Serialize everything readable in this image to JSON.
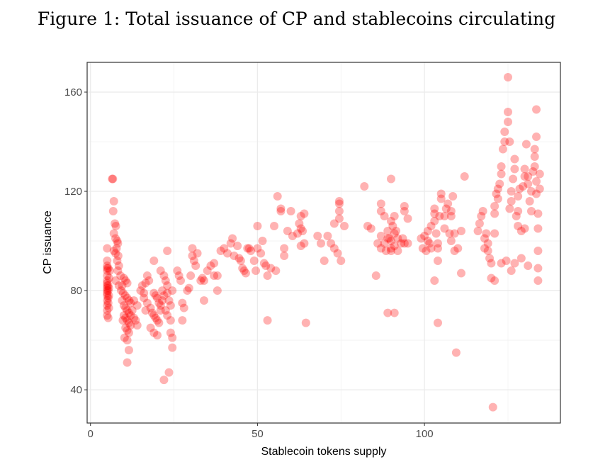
{
  "chart_data": {
    "type": "scatter",
    "title": "Figure 1: Total issuance of CP and stablecoins circulating",
    "xlabel": "Stablecoin tokens supply",
    "ylabel": "CP issuance",
    "xlim": [
      -1,
      140.7
    ],
    "ylim": [
      26.6,
      172
    ],
    "xticks": [
      0,
      50,
      100
    ],
    "yticks": [
      40,
      80,
      120,
      160
    ],
    "grid": true,
    "legend": "none",
    "point_color": "#ff0000",
    "point_alpha": 0.3,
    "points": [
      [
        5,
        70
      ],
      [
        5,
        72
      ],
      [
        5,
        74
      ],
      [
        5,
        76
      ],
      [
        5,
        78
      ],
      [
        5,
        79
      ],
      [
        5,
        80
      ],
      [
        5,
        81
      ],
      [
        5,
        82
      ],
      [
        5,
        83
      ],
      [
        5,
        84
      ],
      [
        5,
        86
      ],
      [
        5,
        88
      ],
      [
        5,
        89
      ],
      [
        5,
        90
      ],
      [
        5,
        92
      ],
      [
        5,
        97
      ],
      [
        5.3,
        69
      ],
      [
        5.3,
        75
      ],
      [
        5.3,
        77
      ],
      [
        5.3,
        80
      ],
      [
        5.3,
        82
      ],
      [
        5.3,
        89
      ],
      [
        5.5,
        73
      ],
      [
        5.5,
        78
      ],
      [
        5.5,
        81
      ],
      [
        5.6,
        85
      ],
      [
        5.8,
        88
      ],
      [
        6.5,
        125
      ],
      [
        6.7,
        125
      ],
      [
        7,
        116
      ],
      [
        6.8,
        112
      ],
      [
        7.3,
        107
      ],
      [
        7.6,
        106
      ],
      [
        7,
        103
      ],
      [
        7.5,
        101
      ],
      [
        8,
        100
      ],
      [
        8.2,
        99
      ],
      [
        7.8,
        97
      ],
      [
        7,
        96
      ],
      [
        7.5,
        95
      ],
      [
        8.3,
        94
      ],
      [
        8,
        92
      ],
      [
        8.5,
        90
      ],
      [
        8.2,
        88
      ],
      [
        9,
        86
      ],
      [
        7.5,
        84
      ],
      [
        8.5,
        82
      ],
      [
        9.5,
        82
      ],
      [
        10,
        85
      ],
      [
        10.5,
        84
      ],
      [
        11,
        83
      ],
      [
        9.2,
        80
      ],
      [
        9.8,
        79
      ],
      [
        10.4,
        78
      ],
      [
        11,
        77
      ],
      [
        11.6,
        76
      ],
      [
        12,
        75
      ],
      [
        9.5,
        76
      ],
      [
        10,
        74
      ],
      [
        10.5,
        73
      ],
      [
        11,
        72
      ],
      [
        11.5,
        71
      ],
      [
        12,
        70
      ],
      [
        10,
        70
      ],
      [
        10.5,
        69
      ],
      [
        11,
        68
      ],
      [
        11.5,
        67
      ],
      [
        12,
        66
      ],
      [
        10.5,
        65
      ],
      [
        11,
        64
      ],
      [
        11.5,
        63
      ],
      [
        9.7,
        68
      ],
      [
        10.2,
        61
      ],
      [
        11,
        60
      ],
      [
        11.5,
        56
      ],
      [
        11,
        51
      ],
      [
        12.5,
        72
      ],
      [
        13,
        69
      ],
      [
        13.5,
        68
      ],
      [
        14,
        66
      ],
      [
        13,
        76
      ],
      [
        14,
        74
      ],
      [
        15,
        80
      ],
      [
        15.5,
        82
      ],
      [
        16,
        79
      ],
      [
        16.5,
        83
      ],
      [
        17,
        86
      ],
      [
        17.5,
        84
      ],
      [
        16,
        77
      ],
      [
        16.5,
        72
      ],
      [
        17,
        75
      ],
      [
        18,
        73
      ],
      [
        18.5,
        71
      ],
      [
        19,
        79
      ],
      [
        19.5,
        78
      ],
      [
        20,
        77
      ],
      [
        20.5,
        75
      ],
      [
        21,
        74
      ],
      [
        19,
        70
      ],
      [
        19.5,
        69
      ],
      [
        20,
        68
      ],
      [
        20.5,
        67
      ],
      [
        21,
        72
      ],
      [
        18,
        65
      ],
      [
        19,
        63
      ],
      [
        20,
        62
      ],
      [
        19,
        92
      ],
      [
        21,
        88
      ],
      [
        22,
        86
      ],
      [
        22.5,
        84
      ],
      [
        23,
        82
      ],
      [
        21.5,
        80
      ],
      [
        22,
        78
      ],
      [
        23,
        79
      ],
      [
        23.5,
        76
      ],
      [
        24,
        74
      ],
      [
        22.5,
        72
      ],
      [
        23,
        70
      ],
      [
        24,
        68
      ],
      [
        24.5,
        80
      ],
      [
        23,
        96
      ],
      [
        24,
        63
      ],
      [
        24.5,
        61
      ],
      [
        24.5,
        57
      ],
      [
        23.5,
        47
      ],
      [
        22,
        44
      ],
      [
        21.5,
        76
      ],
      [
        26,
        88
      ],
      [
        26.5,
        86
      ],
      [
        27,
        84
      ],
      [
        27.5,
        75
      ],
      [
        28,
        73
      ],
      [
        27.5,
        68
      ],
      [
        29,
        80
      ],
      [
        29.5,
        81
      ],
      [
        30,
        86
      ],
      [
        30.5,
        94
      ],
      [
        31,
        92
      ],
      [
        30.5,
        97
      ],
      [
        31.5,
        90
      ],
      [
        32,
        95
      ],
      [
        33,
        84
      ],
      [
        33.5,
        85
      ],
      [
        34,
        84
      ],
      [
        35,
        88
      ],
      [
        36,
        90
      ],
      [
        37,
        91
      ],
      [
        37,
        86
      ],
      [
        38,
        86
      ],
      [
        38,
        80
      ],
      [
        34,
        76
      ],
      [
        39,
        96
      ],
      [
        40,
        97
      ],
      [
        41,
        95
      ],
      [
        42,
        99
      ],
      [
        42.5,
        101
      ],
      [
        43,
        94
      ],
      [
        44,
        98
      ],
      [
        44.5,
        93
      ],
      [
        45,
        92
      ],
      [
        45.5,
        89
      ],
      [
        46,
        88
      ],
      [
        46.5,
        87
      ],
      [
        47,
        97
      ],
      [
        47.5,
        97
      ],
      [
        48,
        96
      ],
      [
        49,
        92
      ],
      [
        49.5,
        88
      ],
      [
        50,
        97
      ],
      [
        50,
        106
      ],
      [
        51,
        95
      ],
      [
        51.5,
        100
      ],
      [
        52,
        91
      ],
      [
        53,
        86
      ],
      [
        52.5,
        90
      ],
      [
        54,
        89
      ],
      [
        55,
        106
      ],
      [
        55.5,
        88
      ],
      [
        56,
        118
      ],
      [
        57,
        113
      ],
      [
        57,
        112
      ],
      [
        58,
        97
      ],
      [
        58,
        94
      ],
      [
        59,
        104
      ],
      [
        60,
        112
      ],
      [
        60.5,
        102
      ],
      [
        62,
        103
      ],
      [
        62.5,
        107
      ],
      [
        63,
        105
      ],
      [
        63,
        98
      ],
      [
        63.5,
        104
      ],
      [
        63,
        110
      ],
      [
        64,
        99
      ],
      [
        64,
        111
      ],
      [
        53,
        68
      ],
      [
        64.5,
        67
      ],
      [
        68,
        102
      ],
      [
        69,
        99
      ],
      [
        70,
        92
      ],
      [
        71,
        102
      ],
      [
        72,
        99
      ],
      [
        73,
        97
      ],
      [
        74,
        95
      ],
      [
        74.5,
        112
      ],
      [
        74.5,
        109
      ],
      [
        74.5,
        116
      ],
      [
        74.5,
        115
      ],
      [
        75,
        92
      ],
      [
        76,
        106
      ],
      [
        73,
        107
      ],
      [
        82,
        122
      ],
      [
        83,
        106
      ],
      [
        84,
        105
      ],
      [
        85.5,
        86
      ],
      [
        86,
        99
      ],
      [
        87,
        115
      ],
      [
        87,
        112
      ],
      [
        88,
        110
      ],
      [
        87,
        102
      ],
      [
        87,
        97
      ],
      [
        88,
        99
      ],
      [
        88.5,
        96
      ],
      [
        89,
        104
      ],
      [
        89.5,
        101
      ],
      [
        90,
        100
      ],
      [
        90,
        108
      ],
      [
        90.5,
        106
      ],
      [
        91,
        103
      ],
      [
        91,
        98
      ],
      [
        91.5,
        104
      ],
      [
        91,
        110
      ],
      [
        90,
        125
      ],
      [
        92,
        101
      ],
      [
        92,
        96
      ],
      [
        93,
        99
      ],
      [
        93.5,
        101
      ],
      [
        94,
        99
      ],
      [
        95,
        99
      ],
      [
        94,
        114
      ],
      [
        94,
        112
      ],
      [
        95,
        109
      ],
      [
        89,
        101
      ],
      [
        90,
        96
      ],
      [
        90,
        97
      ],
      [
        89,
        71
      ],
      [
        91,
        71
      ],
      [
        99,
        101
      ],
      [
        99.5,
        97
      ],
      [
        100,
        102
      ],
      [
        100.5,
        96
      ],
      [
        101,
        100
      ],
      [
        101,
        104
      ],
      [
        102,
        97
      ],
      [
        101.5,
        99
      ],
      [
        102,
        106
      ],
      [
        103,
        113
      ],
      [
        103,
        111
      ],
      [
        103,
        108
      ],
      [
        103.5,
        103
      ],
      [
        104,
        99
      ],
      [
        104,
        97
      ],
      [
        104,
        92
      ],
      [
        104.5,
        110
      ],
      [
        105,
        117
      ],
      [
        105,
        119
      ],
      [
        106,
        105
      ],
      [
        106,
        110
      ],
      [
        106.5,
        113
      ],
      [
        107,
        115
      ],
      [
        107.5,
        103
      ],
      [
        108,
        100
      ],
      [
        108,
        110
      ],
      [
        108.5,
        118
      ],
      [
        108,
        112
      ],
      [
        109,
        103
      ],
      [
        109,
        96
      ],
      [
        110,
        97
      ],
      [
        111,
        104
      ],
      [
        111,
        87
      ],
      [
        112,
        126
      ],
      [
        103,
        84
      ],
      [
        104,
        67
      ],
      [
        109.5,
        55
      ],
      [
        116,
        104
      ],
      [
        116.5,
        107
      ],
      [
        117,
        110
      ],
      [
        117.5,
        112
      ],
      [
        118,
        101
      ],
      [
        118,
        97
      ],
      [
        118.5,
        103
      ],
      [
        119,
        99
      ],
      [
        119,
        96
      ],
      [
        119.5,
        93
      ],
      [
        120,
        91
      ],
      [
        120,
        85
      ],
      [
        121,
        103
      ],
      [
        121,
        111
      ],
      [
        121,
        114
      ],
      [
        121.5,
        119
      ],
      [
        122,
        117
      ],
      [
        122,
        121
      ],
      [
        122.5,
        123
      ],
      [
        123,
        127
      ],
      [
        123,
        130
      ],
      [
        123.5,
        137
      ],
      [
        124,
        140
      ],
      [
        124,
        144
      ],
      [
        125,
        148
      ],
      [
        125,
        152
      ],
      [
        125.5,
        140
      ],
      [
        125.5,
        113
      ],
      [
        126,
        116
      ],
      [
        126,
        120
      ],
      [
        126.5,
        125
      ],
      [
        127,
        129
      ],
      [
        127,
        133
      ],
      [
        127.5,
        110
      ],
      [
        128,
        112
      ],
      [
        128,
        118
      ],
      [
        128.5,
        121
      ],
      [
        129,
        104
      ],
      [
        129,
        93
      ],
      [
        129.5,
        122
      ],
      [
        130,
        126
      ],
      [
        130,
        129
      ],
      [
        130.5,
        139
      ],
      [
        131,
        126
      ],
      [
        131,
        123
      ],
      [
        131.5,
        116
      ],
      [
        132,
        112
      ],
      [
        132,
        120
      ],
      [
        132.5,
        128
      ],
      [
        133,
        130
      ],
      [
        133,
        134
      ],
      [
        133,
        137
      ],
      [
        133.5,
        124
      ],
      [
        133.5,
        119
      ],
      [
        134,
        111
      ],
      [
        134,
        105
      ],
      [
        134,
        96
      ],
      [
        134,
        84
      ],
      [
        134.5,
        121
      ],
      [
        134.5,
        127
      ],
      [
        133.5,
        153
      ],
      [
        133.5,
        142
      ],
      [
        134,
        89
      ],
      [
        126,
        88
      ],
      [
        124.5,
        92
      ],
      [
        123,
        91
      ],
      [
        125,
        166
      ],
      [
        121,
        84
      ],
      [
        120.5,
        33
      ],
      [
        131,
        90
      ],
      [
        130,
        105
      ],
      [
        128,
        106
      ],
      [
        127,
        91
      ]
    ]
  }
}
